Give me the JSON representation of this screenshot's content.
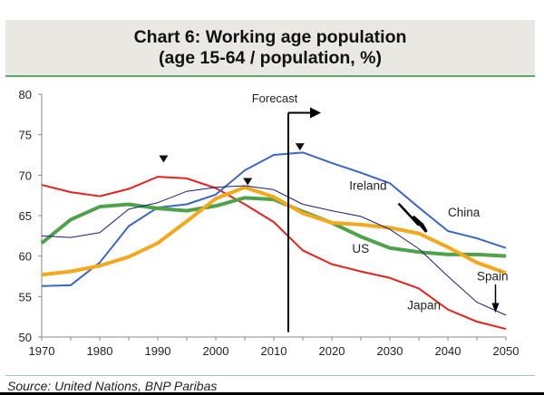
{
  "chart_data": {
    "type": "line",
    "title": "Chart 6: Working age population",
    "subtitle": "(age 15-64 / population, %)",
    "x": [
      1970,
      1975,
      1980,
      1985,
      1990,
      1995,
      2000,
      2005,
      2010,
      2015,
      2020,
      2025,
      2030,
      2035,
      2040,
      2045,
      2050
    ],
    "xlim": [
      1970,
      2050
    ],
    "ylim": [
      50,
      80
    ],
    "xticks": [
      1970,
      1980,
      1990,
      2000,
      2010,
      2020,
      2030,
      2040,
      2050
    ],
    "yticks": [
      50,
      55,
      60,
      65,
      70,
      75,
      80
    ],
    "grid": false,
    "series": [
      {
        "name": "Japan",
        "color": "#e8201c",
        "width": 2,
        "values": [
          68.8,
          67.9,
          67.4,
          68.3,
          69.8,
          69.6,
          68.4,
          66.4,
          64.2,
          60.7,
          59.0,
          58.1,
          57.3,
          56.0,
          53.4,
          51.9,
          51.0
        ]
      },
      {
        "name": "China",
        "color": "#3a66c8",
        "width": 2,
        "values": [
          56.3,
          56.4,
          59.2,
          63.7,
          66.0,
          66.4,
          67.6,
          70.6,
          72.5,
          72.8,
          71.5,
          70.3,
          69.0,
          66.0,
          63.1,
          62.2,
          61.0
        ]
      },
      {
        "name": "US",
        "color": "#4ea24a",
        "width": 4,
        "values": [
          61.6,
          64.5,
          66.1,
          66.4,
          65.9,
          65.6,
          66.2,
          67.2,
          67.0,
          65.5,
          64.1,
          62.4,
          61.0,
          60.5,
          60.2,
          60.2,
          60.0
        ]
      },
      {
        "name": "Spain",
        "color": "#f4a81c",
        "width": 4,
        "values": [
          57.7,
          58.1,
          58.8,
          59.9,
          61.6,
          64.3,
          67.1,
          68.5,
          67.3,
          65.3,
          64.1,
          63.9,
          63.5,
          62.8,
          61.1,
          59.2,
          57.9
        ]
      },
      {
        "name": "Ireland",
        "color": "#1b1a78",
        "width": 1,
        "values": [
          62.5,
          62.3,
          62.9,
          65.8,
          66.6,
          68.0,
          68.5,
          68.7,
          68.2,
          66.4,
          65.6,
          64.9,
          63.3,
          60.9,
          57.5,
          54.3,
          52.7
        ]
      }
    ],
    "annotations": {
      "forecast": {
        "label": "Forecast",
        "year": 2012.5
      },
      "peak_markers": [
        {
          "x": 1991,
          "y": 72
        },
        {
          "x": 2005.5,
          "y": 69.2
        },
        {
          "x": 2014.5,
          "y": 73.5
        }
      ],
      "labels": [
        {
          "text": "Ireland",
          "x": 2023,
          "y": 68.2
        },
        {
          "text": "China",
          "x": 2040,
          "y": 64.9
        },
        {
          "text": "US",
          "x": 2023.5,
          "y": 60.4
        },
        {
          "text": "Spain",
          "x": 2045,
          "y": 57.0
        },
        {
          "text": "Japan",
          "x": 2033,
          "y": 53.4
        }
      ]
    },
    "source": "Source: United Nations, BNP Paribas"
  }
}
